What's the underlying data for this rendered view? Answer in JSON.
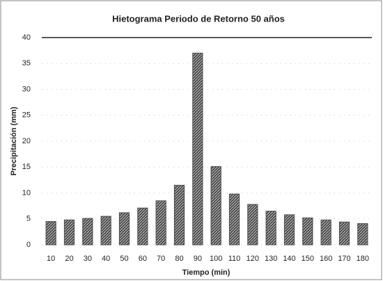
{
  "chart_data": {
    "type": "bar",
    "title": "Hietograma Periodo de Retorno 50 años",
    "x_label": "Tiempo (min)",
    "y_label": "Precipitación (mm)",
    "categories": [
      "10",
      "20",
      "30",
      "40",
      "50",
      "60",
      "70",
      "80",
      "90",
      "100",
      "110",
      "120",
      "130",
      "140",
      "150",
      "160",
      "170",
      "180"
    ],
    "values": [
      4.5,
      4.8,
      5.1,
      5.5,
      6.2,
      7.1,
      8.5,
      11.5,
      37,
      15.1,
      9.8,
      7.8,
      6.5,
      5.8,
      5.2,
      4.8,
      4.4,
      4.1
    ],
    "color": "#4a4a4a",
    "ylim": [
      0,
      40
    ],
    "yticks": [
      0,
      5,
      10,
      15,
      20,
      25,
      30,
      35,
      40
    ],
    "grid": true
  }
}
